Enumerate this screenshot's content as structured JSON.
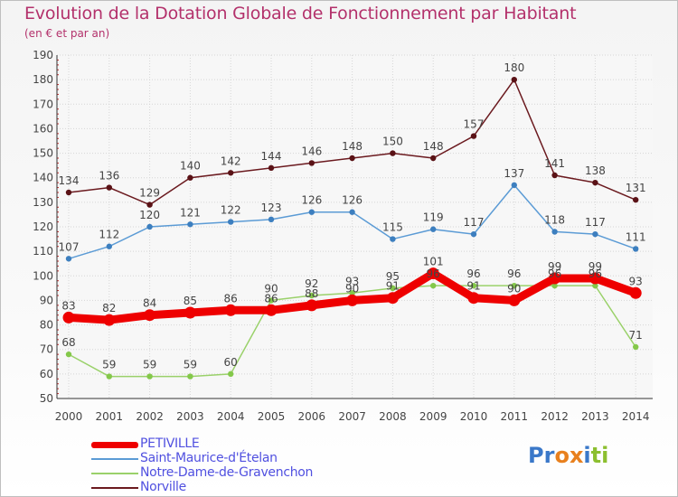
{
  "header": {
    "title": "Evolution de la Dotation Globale de Fonctionnement par Habitant",
    "subtitle": "(en € et par an)"
  },
  "logo": {
    "text": "Proxiti",
    "letters": [
      "P",
      "r",
      "o",
      "x",
      "i",
      "t",
      "i"
    ],
    "letter_colors": [
      "#3a78c9",
      "#3a78c9",
      "#e8801e",
      "#e8801e",
      "#3a78c9",
      "#8cbf2f",
      "#8cbf2f"
    ]
  },
  "chart_data": {
    "type": "line",
    "title": "Evolution de la Dotation Globale de Fonctionnement par Habitant",
    "subtitle": "(en € et par an)",
    "xlabel": "",
    "ylabel": "",
    "ylim": [
      50,
      190
    ],
    "yticks": [
      50,
      60,
      70,
      80,
      90,
      100,
      110,
      120,
      130,
      140,
      150,
      160,
      170,
      180,
      190
    ],
    "grid": true,
    "legend_position": "bottom-left",
    "categories": [
      "2000",
      "2001",
      "2002",
      "2003",
      "2004",
      "2005",
      "2006",
      "2007",
      "2008",
      "2009",
      "2010",
      "2011",
      "2012",
      "2013",
      "2014"
    ],
    "series": [
      {
        "name": "Norville",
        "color": "#6b1a1f",
        "marker_color": "#5a1216",
        "values": [
          134,
          136,
          129,
          140,
          142,
          144,
          146,
          148,
          150,
          148,
          157,
          180,
          141,
          138,
          131
        ]
      },
      {
        "name": "Saint-Maurice-d'Ételan",
        "color": "#5b9bd5",
        "marker_color": "#3d7fbf",
        "values": [
          107,
          112,
          120,
          121,
          122,
          123,
          126,
          126,
          115,
          119,
          117,
          137,
          118,
          117,
          111
        ]
      },
      {
        "name": "Notre-Dame-de-Gravenchon",
        "color": "#9ad16a",
        "marker_color": "#84c84a",
        "values": [
          68,
          59,
          59,
          59,
          60,
          90,
          92,
          93,
          95,
          96,
          96,
          96,
          96,
          96,
          71
        ]
      },
      {
        "name": "PETIVILLE",
        "color": "#ee0000",
        "marker_color": "#ee0000",
        "values": [
          83,
          82,
          84,
          85,
          86,
          86,
          88,
          90,
          91,
          101,
          91,
          90,
          99,
          99,
          93
        ]
      }
    ],
    "point_labels": {
      "Norville": [
        "134",
        "136",
        "129",
        "140",
        "142",
        "144",
        "146",
        "148",
        "150",
        "148",
        "157",
        "180",
        "141",
        "138",
        "131"
      ],
      "Saint-Maurice-d'Ételan": [
        "107",
        "112",
        "120",
        "121",
        "122",
        "123",
        "126",
        "126",
        "115",
        "119",
        "117",
        "137",
        "118",
        "117",
        "111"
      ],
      "Notre-Dame-de-Gravenchon": [
        "68",
        "59",
        "59",
        "59",
        "60",
        "90",
        "92",
        "93",
        "95",
        "96",
        "96",
        "96",
        "96",
        "96",
        "71"
      ],
      "PETIVILLE": [
        "83",
        "82",
        "84",
        "85",
        "86",
        "86",
        "88",
        "90",
        "91",
        "101",
        "91",
        "90",
        "99",
        "99",
        "93"
      ]
    }
  },
  "legend": {
    "items": [
      {
        "label": "PETIVILLE",
        "color": "#ee0000",
        "thickness": 7
      },
      {
        "label": "Saint-Maurice-d'Ételan",
        "color": "#5b9bd5",
        "thickness": 2
      },
      {
        "label": "Notre-Dame-de-Gravenchon",
        "color": "#9ad16a",
        "thickness": 2
      },
      {
        "label": "Norville",
        "color": "#6b1a1f",
        "thickness": 2
      }
    ]
  }
}
